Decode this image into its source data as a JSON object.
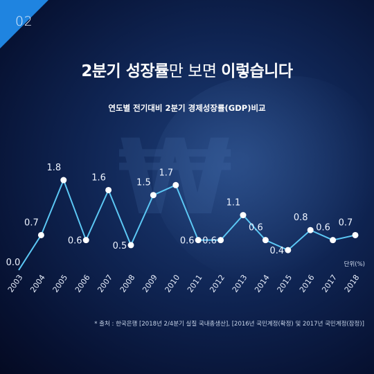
{
  "corner_number": "02",
  "title": {
    "bold_part": "2분기 성장률",
    "light_part": "만 보면 ",
    "bold_end": "이렇습니다"
  },
  "subtitle": "연도별 전기대비 2분기 경제성장률(GDP)비교",
  "unit_label": "단위(%)",
  "source": "* 출처 : 한국은행 [2018년 2/4분기 실질 국내총생산], [2016년 국민계정(확정) 및 2017년 국민계정(잠정)]",
  "colors": {
    "line": "#5cc8f5",
    "corner": "#1f84e0",
    "point": "#ffffff"
  },
  "chart_data": {
    "type": "line",
    "title": "연도별 전기대비 2분기 경제성장률(GDP)비교",
    "xlabel": "",
    "ylabel": "단위(%)",
    "x": [
      "2003",
      "2004",
      "2005",
      "2006",
      "2007",
      "2008",
      "2009",
      "2010",
      "2011",
      "2012",
      "2013",
      "2014",
      "2015",
      "2016",
      "2017",
      "2018"
    ],
    "values": [
      0.0,
      0.7,
      1.8,
      0.6,
      1.6,
      0.5,
      1.5,
      1.7,
      0.6,
      0.6,
      1.1,
      0.6,
      0.4,
      0.8,
      0.6,
      0.7
    ],
    "data_labels": [
      "0.0",
      "0.7",
      "1.8",
      "0.6",
      "1.6",
      "0.5",
      "1.5",
      "1.7",
      "0.6",
      "0.6",
      "1.1",
      "0.6",
      "0.4",
      "0.8",
      "0.6",
      "0.7"
    ],
    "ylim": [
      0,
      1.8
    ],
    "grid": false
  }
}
